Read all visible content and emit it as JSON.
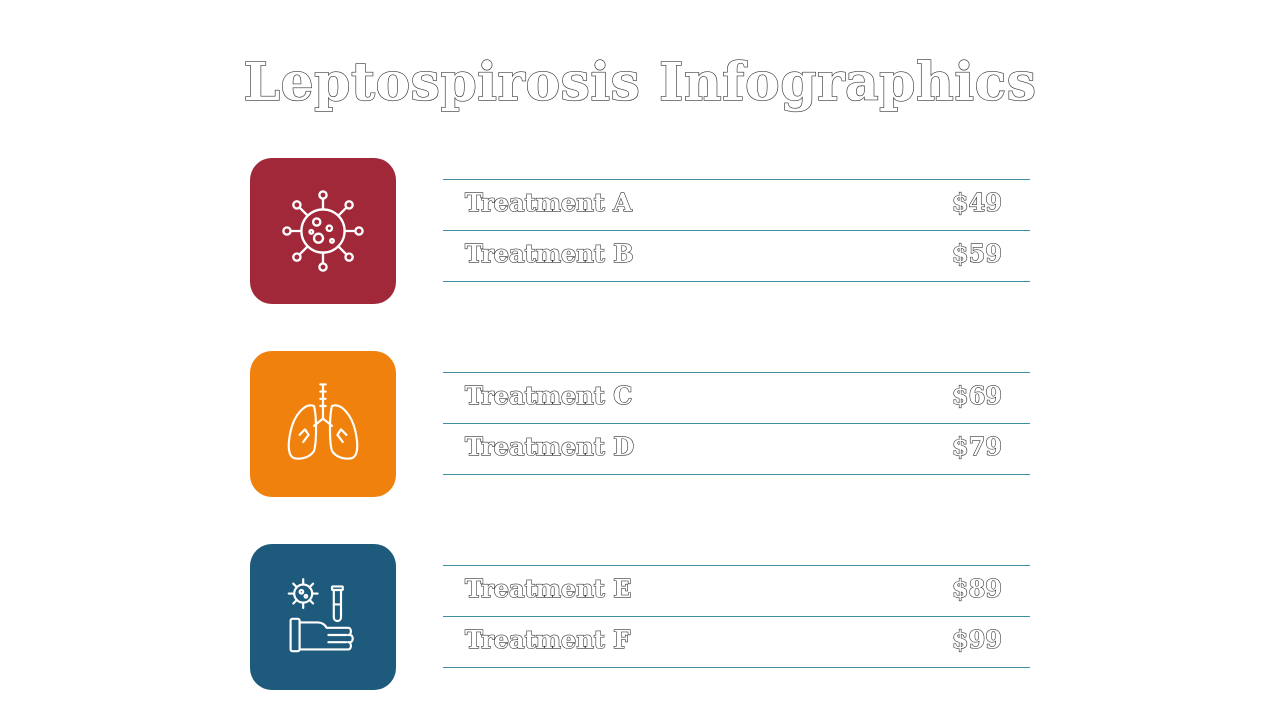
{
  "title": "Leptospirosis Infographics",
  "groups": [
    {
      "icon": "virus-icon",
      "color": "#a02839",
      "rows": [
        {
          "name": "Treatment A",
          "price": "$49"
        },
        {
          "name": "Treatment B",
          "price": "$59"
        }
      ]
    },
    {
      "icon": "lungs-icon",
      "color": "#f0810c",
      "rows": [
        {
          "name": "Treatment C",
          "price": "$69"
        },
        {
          "name": "Treatment D",
          "price": "$79"
        }
      ]
    },
    {
      "icon": "hand-test-tube-virus-icon",
      "color": "#1d5a7c",
      "rows": [
        {
          "name": "Treatment E",
          "price": "$89"
        },
        {
          "name": "Treatment F",
          "price": "$99"
        }
      ]
    }
  ]
}
